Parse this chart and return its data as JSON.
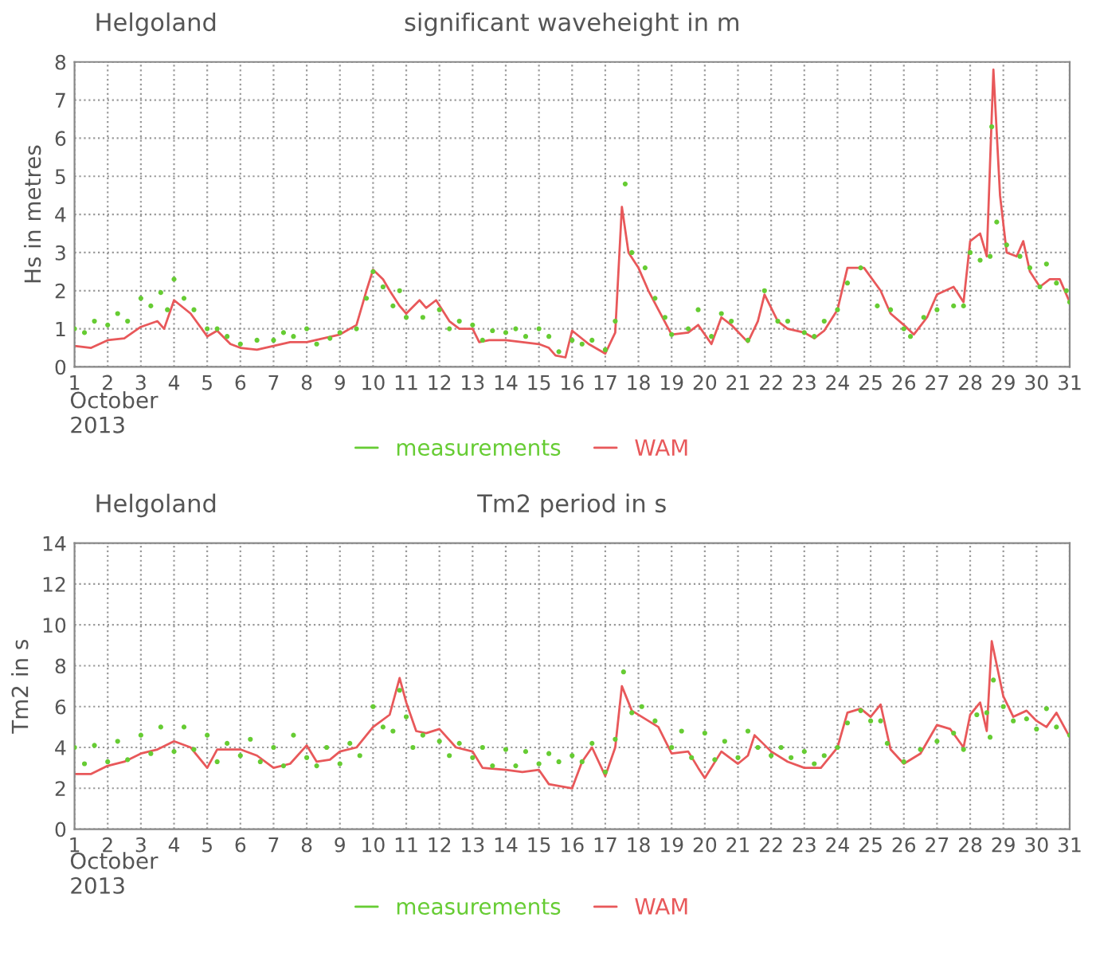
{
  "chart_data": [
    {
      "type": "line",
      "title": "Helgoland",
      "subtitle": "significant waveheight in m",
      "ylabel": "Hs in metres",
      "xlabel": "October\n2013",
      "xlim": [
        1,
        31
      ],
      "xticks": [
        1,
        2,
        3,
        4,
        5,
        6,
        7,
        8,
        9,
        10,
        11,
        12,
        13,
        14,
        15,
        16,
        17,
        18,
        19,
        20,
        21,
        22,
        23,
        24,
        25,
        26,
        27,
        28,
        29,
        30,
        31
      ],
      "ylim": [
        0,
        8
      ],
      "yticks": [
        0,
        1,
        2,
        3,
        4,
        5,
        6,
        7,
        8
      ],
      "grid": true,
      "legend": "bottom",
      "series": [
        {
          "name": "measurements",
          "type": "scatter",
          "marker": "circle",
          "color": "#66cc33",
          "x": [
            1,
            1.3,
            1.6,
            2,
            2.3,
            2.6,
            3,
            3.3,
            3.6,
            3.8,
            4,
            4.3,
            4.6,
            5,
            5.3,
            5.6,
            6,
            6.5,
            7,
            7.3,
            7.6,
            8,
            8.3,
            8.7,
            9,
            9.5,
            9.8,
            10,
            10.3,
            10.6,
            10.8,
            11,
            11.5,
            12,
            12.3,
            12.6,
            13,
            13.3,
            13.6,
            14,
            14.3,
            14.6,
            15,
            15.3,
            15.6,
            16,
            16.3,
            16.6,
            17,
            17.3,
            17.6,
            17.8,
            18.2,
            18.5,
            18.8,
            19,
            19.5,
            19.8,
            20.2,
            20.5,
            20.8,
            21.3,
            21.8,
            22.2,
            22.5,
            23,
            23.3,
            23.6,
            24,
            24.3,
            24.7,
            25.2,
            25.6,
            26,
            26.2,
            26.6,
            27,
            27.5,
            27.8,
            28,
            28.3,
            28.6,
            28.65,
            28.8,
            29.1,
            29.5,
            29.8,
            30.1,
            30.3,
            30.6,
            30.9,
            31
          ],
          "values": [
            1.0,
            0.9,
            1.2,
            1.1,
            1.4,
            1.2,
            1.8,
            1.6,
            1.95,
            1.5,
            2.3,
            1.8,
            1.5,
            1.0,
            1.0,
            0.8,
            0.6,
            0.7,
            0.7,
            0.9,
            0.8,
            1.0,
            0.6,
            0.75,
            0.9,
            1.0,
            1.8,
            2.5,
            2.1,
            1.6,
            2.0,
            1.3,
            1.3,
            1.5,
            1.0,
            1.2,
            1.1,
            0.7,
            0.95,
            0.9,
            1.0,
            0.8,
            1.0,
            0.8,
            0.4,
            0.7,
            0.6,
            0.7,
            0.45,
            1.2,
            4.8,
            3.0,
            2.6,
            1.8,
            1.3,
            0.85,
            1.0,
            1.5,
            0.8,
            1.4,
            1.2,
            0.7,
            2.0,
            1.2,
            1.2,
            0.9,
            0.8,
            1.2,
            1.5,
            2.2,
            2.6,
            1.6,
            1.5,
            1.0,
            0.8,
            1.3,
            1.5,
            1.6,
            1.6,
            3.0,
            2.8,
            2.9,
            6.3,
            3.8,
            3.2,
            2.9,
            2.6,
            2.1,
            2.7,
            2.2,
            2.0,
            1.7
          ]
        },
        {
          "name": "WAM",
          "color": "#e8585a",
          "x": [
            1,
            1.5,
            2,
            2.5,
            3,
            3.5,
            3.7,
            4,
            4.5,
            5,
            5.3,
            5.7,
            6,
            6.5,
            7,
            7.5,
            8,
            8.5,
            9,
            9.5,
            9.8,
            10,
            10.3,
            10.5,
            10.8,
            11,
            11.4,
            11.6,
            11.9,
            12.3,
            12.6,
            13,
            13.2,
            13.5,
            14,
            14.5,
            15,
            15.3,
            15.5,
            15.8,
            16,
            16.5,
            17,
            17.3,
            17.5,
            17.7,
            18,
            18.3,
            18.6,
            19,
            19.5,
            19.8,
            20.2,
            20.5,
            20.8,
            21.3,
            21.6,
            21.8,
            22.2,
            22.5,
            23,
            23.3,
            23.6,
            24,
            24.3,
            24.8,
            25.3,
            25.6,
            26,
            26.3,
            26.7,
            27,
            27.5,
            27.8,
            28,
            28.3,
            28.5,
            28.7,
            28.9,
            29.1,
            29.4,
            29.6,
            29.8,
            30.1,
            30.4,
            30.7,
            31
          ],
          "values": [
            0.55,
            0.5,
            0.7,
            0.75,
            1.05,
            1.2,
            1.0,
            1.75,
            1.4,
            0.8,
            0.95,
            0.6,
            0.5,
            0.45,
            0.55,
            0.65,
            0.65,
            0.75,
            0.85,
            1.1,
            2.0,
            2.55,
            2.3,
            2.0,
            1.6,
            1.4,
            1.75,
            1.55,
            1.75,
            1.2,
            1.0,
            1.0,
            0.65,
            0.7,
            0.7,
            0.65,
            0.6,
            0.5,
            0.3,
            0.25,
            0.95,
            0.6,
            0.35,
            0.9,
            4.2,
            3.0,
            2.6,
            2.0,
            1.5,
            0.85,
            0.9,
            1.1,
            0.6,
            1.3,
            1.1,
            0.65,
            1.2,
            1.9,
            1.2,
            1.0,
            0.9,
            0.75,
            0.95,
            1.5,
            2.6,
            2.6,
            2.0,
            1.4,
            1.1,
            0.85,
            1.3,
            1.9,
            2.1,
            1.7,
            3.3,
            3.5,
            2.9,
            7.8,
            4.5,
            3.0,
            2.9,
            3.3,
            2.5,
            2.1,
            2.3,
            2.3,
            1.7
          ]
        }
      ]
    },
    {
      "type": "line",
      "title": "Helgoland",
      "subtitle": "Tm2 period in s",
      "ylabel": "Tm2 in s",
      "xlabel": "October\n2013",
      "xlim": [
        1,
        31
      ],
      "xticks": [
        1,
        2,
        3,
        4,
        5,
        6,
        7,
        8,
        9,
        10,
        11,
        12,
        13,
        14,
        15,
        16,
        17,
        18,
        19,
        20,
        21,
        22,
        23,
        24,
        25,
        26,
        27,
        28,
        29,
        30,
        31
      ],
      "ylim": [
        0,
        14
      ],
      "yticks": [
        0,
        2,
        4,
        6,
        8,
        10,
        12,
        14
      ],
      "grid": true,
      "legend": "bottom",
      "series": [
        {
          "name": "measurements",
          "type": "scatter",
          "marker": "circle",
          "color": "#66cc33",
          "x": [
            1,
            1.3,
            1.6,
            2,
            2.3,
            2.6,
            3,
            3.3,
            3.6,
            4,
            4.3,
            4.6,
            5,
            5.3,
            5.6,
            6,
            6.3,
            6.6,
            7,
            7.3,
            7.6,
            8,
            8.3,
            8.6,
            9,
            9.3,
            9.6,
            10,
            10.3,
            10.6,
            10.8,
            11,
            11.2,
            11.5,
            12,
            12.3,
            12.6,
            13,
            13.3,
            13.6,
            14,
            14.3,
            14.6,
            15,
            15.3,
            15.6,
            16,
            16.3,
            16.6,
            17,
            17.3,
            17.55,
            17.8,
            18.1,
            18.5,
            19,
            19.3,
            19.6,
            20,
            20.3,
            20.6,
            21,
            21.3,
            21.6,
            22,
            22.3,
            22.6,
            23,
            23.3,
            23.6,
            24,
            24.3,
            24.7,
            25,
            25.3,
            25.5,
            26,
            26.5,
            27,
            27.5,
            27.8,
            28.2,
            28.5,
            28.6,
            28.7,
            29,
            29.3,
            29.7,
            30,
            30.3,
            30.6,
            31
          ],
          "values": [
            4.0,
            3.2,
            4.1,
            3.3,
            4.3,
            3.4,
            4.6,
            3.7,
            5.0,
            3.8,
            5.0,
            3.9,
            4.6,
            3.3,
            4.2,
            3.6,
            4.4,
            3.3,
            4.0,
            3.1,
            4.6,
            3.5,
            3.1,
            4.0,
            3.2,
            4.2,
            3.6,
            6.0,
            5.0,
            4.8,
            6.8,
            5.5,
            4.0,
            4.6,
            4.3,
            3.6,
            4.2,
            3.5,
            4.0,
            3.1,
            3.9,
            3.1,
            3.8,
            3.2,
            3.7,
            3.3,
            3.6,
            3.3,
            4.2,
            2.8,
            4.4,
            7.7,
            5.7,
            6.0,
            5.3,
            4.0,
            4.8,
            3.5,
            4.7,
            3.4,
            4.3,
            3.5,
            4.8,
            4.0,
            3.6,
            4.0,
            3.5,
            3.8,
            3.2,
            3.6,
            4.0,
            5.2,
            5.8,
            5.3,
            5.3,
            4.2,
            3.3,
            3.9,
            4.3,
            4.7,
            3.9,
            5.6,
            5.7,
            4.5,
            7.3,
            6.0,
            5.3,
            5.4,
            4.9,
            5.9,
            5.0,
            4.6
          ]
        },
        {
          "name": "WAM",
          "color": "#e8585a",
          "x": [
            1,
            1.5,
            2,
            2.5,
            3,
            3.5,
            4,
            4.5,
            5,
            5.3,
            6,
            6.5,
            7,
            7.5,
            8,
            8.3,
            8.7,
            9,
            9.5,
            10,
            10.5,
            10.8,
            11,
            11.3,
            11.6,
            12,
            12.5,
            13,
            13.3,
            14,
            14.5,
            15,
            15.3,
            16,
            16.3,
            16.6,
            17,
            17.3,
            17.5,
            17.8,
            18.2,
            18.6,
            19,
            19.5,
            19.8,
            20,
            20.5,
            21,
            21.3,
            21.5,
            22,
            22.5,
            23,
            23.5,
            24,
            24.3,
            24.7,
            25,
            25.3,
            25.6,
            26,
            26.5,
            27,
            27.4,
            27.8,
            28,
            28.3,
            28.5,
            28.65,
            29,
            29.3,
            29.7,
            30,
            30.3,
            30.6,
            31
          ],
          "values": [
            2.7,
            2.7,
            3.1,
            3.3,
            3.7,
            3.9,
            4.3,
            4.0,
            3.0,
            3.9,
            3.9,
            3.6,
            3.0,
            3.2,
            4.1,
            3.3,
            3.4,
            3.8,
            4.0,
            5.0,
            5.6,
            7.4,
            6.2,
            4.8,
            4.7,
            4.9,
            4.0,
            3.8,
            3.0,
            2.9,
            2.8,
            2.9,
            2.2,
            2.0,
            3.3,
            4.0,
            2.6,
            4.0,
            7.0,
            5.8,
            5.4,
            5.0,
            3.7,
            3.8,
            3.0,
            2.5,
            3.8,
            3.2,
            3.6,
            4.6,
            3.8,
            3.3,
            3.0,
            3.0,
            4.0,
            5.7,
            5.9,
            5.5,
            6.1,
            3.9,
            3.2,
            3.7,
            5.1,
            4.9,
            4.0,
            5.6,
            6.2,
            4.8,
            9.2,
            6.5,
            5.5,
            5.8,
            5.3,
            5.0,
            5.7,
            4.5
          ]
        }
      ]
    }
  ]
}
